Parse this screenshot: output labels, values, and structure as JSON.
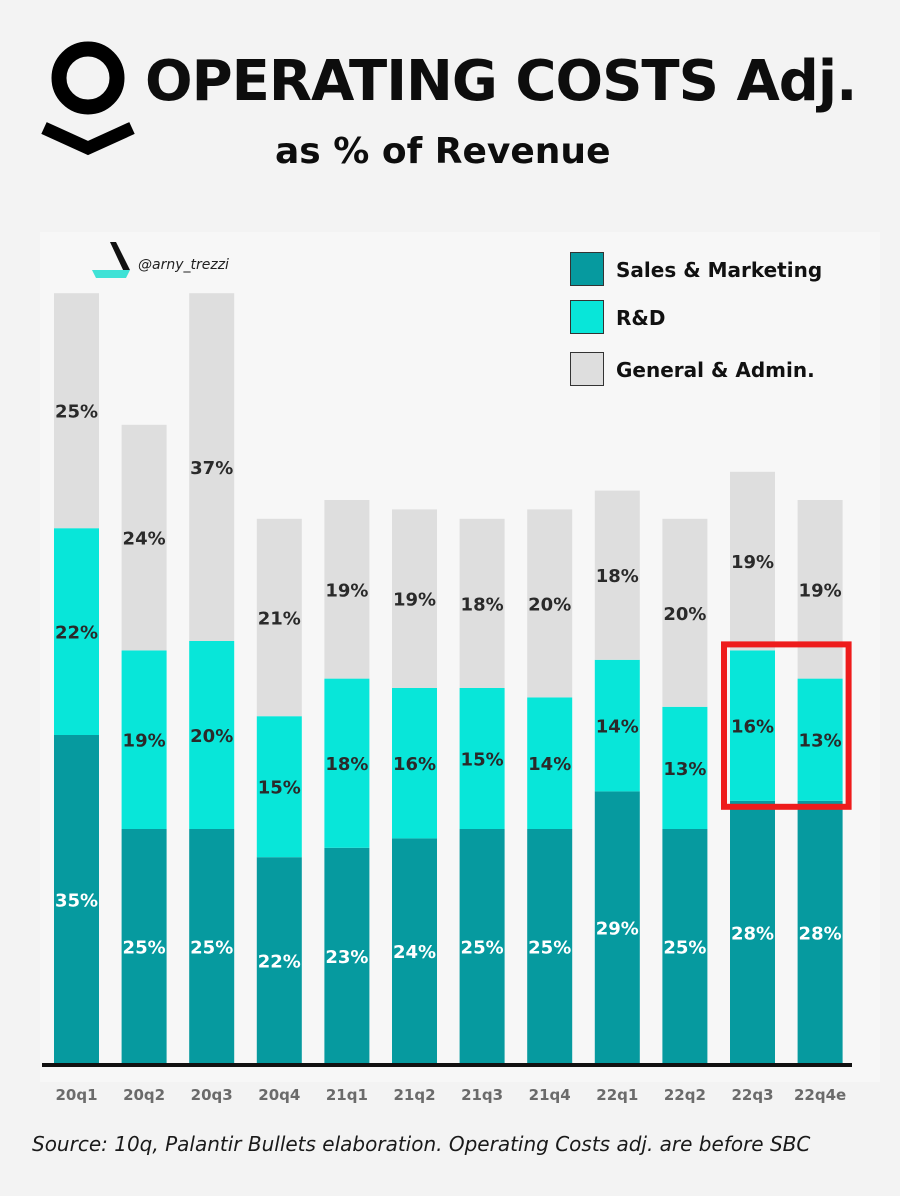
{
  "header": {
    "title": "OPERATING COSTS Adj.",
    "subtitle": "as % of Revenue"
  },
  "watermark": {
    "handle": "@arny_trezzi"
  },
  "source": "Source: 10q, Palantir Bullets elaboration. Operating Costs adj. are before SBC",
  "colors": {
    "sales_marketing": "#069a9f",
    "rd": "#08e6d9",
    "general_admin": "#dedede",
    "highlight": "#ee1c1c",
    "axis": "#111111"
  },
  "chart_data": {
    "type": "bar",
    "stacked": true,
    "categories": [
      "20q1",
      "20q2",
      "20q3",
      "20q4",
      "21q1",
      "21q2",
      "21q3",
      "21q4",
      "22q1",
      "22q2",
      "22q3",
      "22q4e"
    ],
    "series": [
      {
        "name": "Sales & Marketing",
        "values": [
          35,
          25,
          25,
          22,
          23,
          24,
          25,
          25,
          29,
          25,
          28,
          28
        ]
      },
      {
        "name": "R&D",
        "values": [
          22,
          19,
          20,
          15,
          18,
          16,
          15,
          14,
          14,
          13,
          16,
          13
        ]
      },
      {
        "name": "General & Admin.",
        "values": [
          25,
          24,
          37,
          21,
          19,
          19,
          18,
          20,
          18,
          20,
          19,
          19
        ]
      }
    ],
    "data_labels": {
      "Sales & Marketing": [
        "35%",
        "25%",
        "25%",
        "22%",
        "23%",
        "24%",
        "25%",
        "25%",
        "29%",
        "25%",
        "28%",
        "28%"
      ],
      "R&D": [
        "22%",
        "19%",
        "20%",
        "15%",
        "18%",
        "16%",
        "15%",
        "14%",
        "14%",
        "13%",
        "16%",
        "13%"
      ],
      "General & Admin.": [
        "25%",
        "24%",
        "37%",
        "21%",
        "19%",
        "19%",
        "18%",
        "20%",
        "18%",
        "20%",
        "19%",
        "19%"
      ]
    },
    "legend_position": "top-right",
    "highlight": {
      "categories": [
        "22q3",
        "22q4e"
      ],
      "series": "R&D"
    },
    "grid": false
  }
}
